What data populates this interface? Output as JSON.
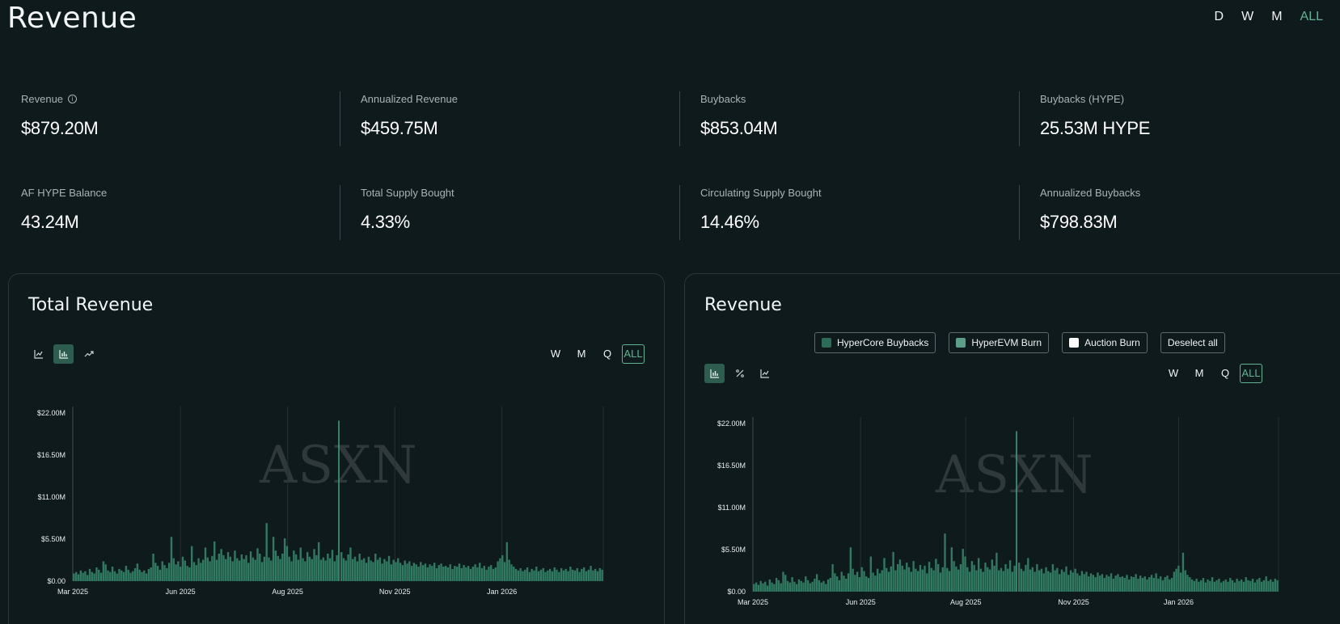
{
  "header": {
    "title": "Revenue",
    "range_tabs": [
      "D",
      "W",
      "M",
      "ALL"
    ],
    "active_range": "ALL"
  },
  "stats": [
    [
      {
        "label": "Revenue",
        "value": "$879.20M",
        "info": true
      },
      {
        "label": "Annualized Revenue",
        "value": "$459.75M"
      },
      {
        "label": "Buybacks",
        "value": "$853.04M"
      },
      {
        "label": "Buybacks (HYPE)",
        "value": "25.53M HYPE"
      }
    ],
    [
      {
        "label": "AF HYPE Balance",
        "value": "43.24M"
      },
      {
        "label": "Total Supply Bought",
        "value": "4.33%"
      },
      {
        "label": "Circulating Supply Bought",
        "value": "14.46%"
      },
      {
        "label": "Annualized Buybacks",
        "value": "$798.83M"
      }
    ]
  ],
  "left_card": {
    "title": "Total Revenue",
    "chart_type_icons": [
      "line-chart-icon",
      "bar-chart-icon",
      "trend-chart-icon"
    ],
    "active_chart_type": "bar-chart-icon",
    "freq_tabs": [
      "W",
      "M",
      "Q",
      "ALL"
    ],
    "active_freq": "ALL",
    "watermark": "ASXN"
  },
  "right_card": {
    "title": "Revenue",
    "legend": [
      {
        "label": "HyperCore Buybacks",
        "color": "#2d6b57"
      },
      {
        "label": "HyperEVM Burn",
        "color": "#5c9d88"
      },
      {
        "label": "Auction Burn",
        "color": "#ffffff"
      }
    ],
    "deselect_label": "Deselect all",
    "chart_type_icons": [
      "bar-chart-icon",
      "percent-icon",
      "line-chart-icon"
    ],
    "active_chart_type": "bar-chart-icon",
    "freq_tabs": [
      "W",
      "M",
      "Q",
      "ALL"
    ],
    "active_freq": "ALL",
    "watermark": "ASXN"
  },
  "colors": {
    "bar": "#2f7a60",
    "accent": "#5fb592"
  },
  "chart_data": [
    {
      "type": "bar",
      "title": "Total Revenue",
      "ytick_labels": [
        "$0.00",
        "$5.50M",
        "$11.00M",
        "$16.50M",
        "$22.00M"
      ],
      "ylim": [
        0,
        22
      ],
      "y_unit": "$M",
      "xtick_labels": [
        "Mar 2025",
        "Jun 2025",
        "Aug 2025",
        "Nov 2025",
        "Jan 2026"
      ],
      "series": [
        {
          "values": [
            1.0,
            1.2,
            0.9,
            1.4,
            1.1,
            1.3,
            0.8,
            1.6,
            1.2,
            1.0,
            1.8,
            1.5,
            1.1,
            2.6,
            2.2,
            1.4,
            1.2,
            1.9,
            1.3,
            1.0,
            1.6,
            1.4,
            1.2,
            2.0,
            1.5,
            1.1,
            1.3,
            1.7,
            2.3,
            1.5,
            1.2,
            1.4,
            1.0,
            1.6,
            1.8,
            3.6,
            2.4,
            2.0,
            1.5,
            2.6,
            2.1,
            1.7,
            2.4,
            5.8,
            3.0,
            2.2,
            2.6,
            1.9,
            3.2,
            2.7,
            2.0,
            1.8,
            4.6,
            2.5,
            2.1,
            3.0,
            2.4,
            2.8,
            4.4,
            3.1,
            2.6,
            3.3,
            5.2,
            2.8,
            3.6,
            4.2,
            3.4,
            2.9,
            3.8,
            3.2,
            2.6,
            4.0,
            3.0,
            2.7,
            3.5,
            2.9,
            3.4,
            2.4,
            3.9,
            3.1,
            2.8,
            4.3,
            3.6,
            2.5,
            3.2,
            7.6,
            3.1,
            2.7,
            5.8,
            4.0,
            3.3,
            2.9,
            3.6,
            5.6,
            4.6,
            3.2,
            2.6,
            4.0,
            3.5,
            2.8,
            4.4,
            3.0,
            2.6,
            3.8,
            3.2,
            2.9,
            4.2,
            3.4,
            5.1,
            2.8,
            3.1,
            2.7,
            3.6,
            3.0,
            4.1,
            2.6,
            3.4,
            21.0,
            3.8,
            3.0,
            2.7,
            3.5,
            4.4,
            2.9,
            3.2,
            2.6,
            3.6,
            2.8,
            3.0,
            2.4,
            3.2,
            2.7,
            2.5,
            3.6,
            2.8,
            3.1,
            2.3,
            2.9,
            2.6,
            3.3,
            2.2,
            2.8,
            2.5,
            3.0,
            2.4,
            2.1,
            2.7,
            2.3,
            2.6,
            2.0,
            2.4,
            2.2,
            1.9,
            2.5,
            2.1,
            2.3,
            1.8,
            2.2,
            2.0,
            2.4,
            1.7,
            2.1,
            2.3,
            1.9,
            2.0,
            1.8,
            2.2,
            1.6,
            2.0,
            1.9,
            2.3,
            1.7,
            2.1,
            1.8,
            2.0,
            1.6,
            1.9,
            2.2,
            1.8,
            2.4,
            1.7,
            2.0,
            1.5,
            1.9,
            2.1,
            1.6,
            1.8,
            2.6,
            3.0,
            3.4,
            2.5,
            5.1,
            2.8,
            2.2,
            1.9,
            1.6,
            1.4,
            1.7,
            1.3,
            1.5,
            1.8,
            1.2,
            1.6,
            1.4,
            1.9,
            1.3,
            1.5,
            1.7,
            1.2,
            1.4,
            1.6,
            1.3,
            1.8,
            1.5,
            1.2,
            1.7,
            1.4,
            1.6,
            1.3,
            1.9,
            1.5,
            1.4,
            1.7,
            1.2,
            1.6,
            1.8,
            1.3,
            1.5,
            2.0,
            1.4,
            1.6,
            1.3,
            1.7,
            1.5
          ]
        }
      ]
    },
    {
      "type": "bar",
      "title": "Revenue",
      "ytick_labels": [
        "$0.00",
        "$5.50M",
        "$11.00M",
        "$16.50M",
        "$22.00M"
      ],
      "ylim": [
        0,
        22
      ],
      "y_unit": "$M",
      "xtick_labels": [
        "Mar 2025",
        "Jun 2025",
        "Aug 2025",
        "Nov 2025",
        "Jan 2026"
      ],
      "stacked": true,
      "series": [
        {
          "name": "HyperCore Buybacks",
          "values": [
            1.0,
            1.2,
            0.9,
            1.4,
            1.1,
            1.3,
            0.8,
            1.6,
            1.2,
            1.0,
            1.8,
            1.5,
            1.1,
            2.6,
            2.2,
            1.4,
            1.2,
            1.9,
            1.3,
            1.0,
            1.6,
            1.4,
            1.2,
            2.0,
            1.5,
            1.1,
            1.3,
            1.7,
            2.3,
            1.5,
            1.2,
            1.4,
            1.0,
            1.6,
            1.8,
            3.6,
            2.4,
            2.0,
            1.5,
            2.6,
            2.1,
            1.7,
            2.4,
            5.8,
            3.0,
            2.2,
            2.6,
            1.9,
            3.2,
            2.7,
            2.0,
            1.8,
            4.6,
            2.5,
            2.1,
            3.0,
            2.4,
            2.8,
            4.4,
            3.1,
            2.6,
            3.3,
            5.2,
            2.8,
            3.6,
            4.2,
            3.4,
            2.9,
            3.8,
            3.2,
            2.6,
            4.0,
            3.0,
            2.7,
            3.5,
            2.9,
            3.4,
            2.4,
            3.9,
            3.1,
            2.8,
            4.3,
            3.6,
            2.5,
            3.2,
            7.6,
            3.1,
            2.7,
            5.8,
            4.0,
            3.3,
            2.9,
            3.6,
            5.6,
            4.6,
            3.2,
            2.6,
            4.0,
            3.5,
            2.8,
            4.4,
            3.0,
            2.6,
            3.8,
            3.2,
            2.9,
            4.2,
            3.4,
            5.1,
            2.8,
            3.1,
            2.7,
            3.6,
            3.0,
            4.1,
            2.6,
            3.4,
            21.0,
            3.8,
            3.0,
            2.7,
            3.5,
            4.4,
            2.9,
            3.2,
            2.6,
            3.6,
            2.8,
            3.0,
            2.4,
            3.2,
            2.7,
            2.5,
            3.6,
            2.8,
            3.1,
            2.3,
            2.9,
            2.6,
            3.3,
            2.2,
            2.8,
            2.5,
            3.0,
            2.4,
            2.1,
            2.7,
            2.3,
            2.6,
            2.0,
            2.4,
            2.2,
            1.9,
            2.5,
            2.1,
            2.3,
            1.8,
            2.2,
            2.0,
            2.4,
            1.7,
            2.1,
            2.3,
            1.9,
            2.0,
            1.8,
            2.2,
            1.6,
            2.0,
            1.9,
            2.3,
            1.7,
            2.1,
            1.8,
            2.0,
            1.6,
            1.9,
            2.2,
            1.8,
            2.4,
            1.7,
            2.0,
            1.5,
            1.9,
            2.1,
            1.6,
            1.8,
            2.6,
            3.0,
            3.4,
            2.5,
            5.1,
            2.8,
            2.2,
            1.9,
            1.6,
            1.4,
            1.7,
            1.3,
            1.5,
            1.8,
            1.2,
            1.6,
            1.4,
            1.9,
            1.3,
            1.5,
            1.7,
            1.2,
            1.4,
            1.6,
            1.3,
            1.8,
            1.5,
            1.2,
            1.7,
            1.4,
            1.6,
            1.3,
            1.9,
            1.5,
            1.4,
            1.7,
            1.2,
            1.6,
            1.8,
            1.3,
            1.5,
            2.0,
            1.4,
            1.6,
            1.3,
            1.7,
            1.5
          ]
        }
      ]
    }
  ]
}
